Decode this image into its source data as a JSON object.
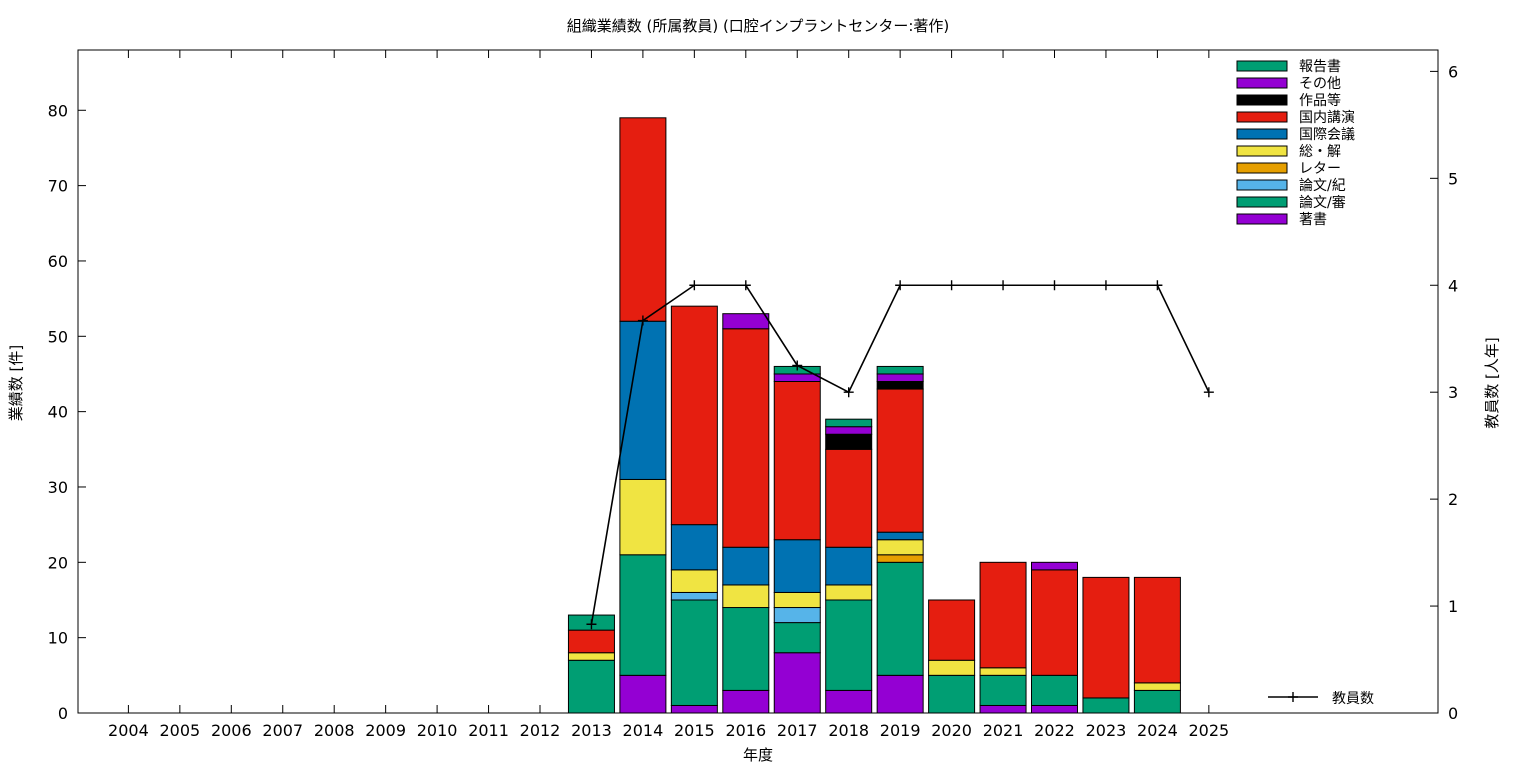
{
  "chart_data": {
    "type": "bar",
    "stacked": true,
    "title": "組織業績数 (所属教員) (口腔インプラントセンター:著作)",
    "xlabel": "年度",
    "ylabel": "業績数 [件]",
    "y2label": "教員数 [人年]",
    "categories": [
      "2004",
      "2005",
      "2006",
      "2007",
      "2008",
      "2009",
      "2010",
      "2011",
      "2012",
      "2013",
      "2014",
      "2015",
      "2016",
      "2017",
      "2018",
      "2019",
      "2020",
      "2021",
      "2022",
      "2023",
      "2024",
      "2025"
    ],
    "ylim": [
      0,
      88
    ],
    "y2lim": [
      0,
      6.2
    ],
    "yticks": [
      0,
      10,
      20,
      30,
      40,
      50,
      60,
      70,
      80
    ],
    "y2ticks": [
      0,
      1,
      2,
      3,
      4,
      5,
      6
    ],
    "grid": false,
    "legend_position": "top-right",
    "series": [
      {
        "name": "著書",
        "color": "#9400d3",
        "values": [
          0,
          0,
          0,
          0,
          0,
          0,
          0,
          0,
          0,
          0,
          5,
          1,
          3,
          8,
          3,
          5,
          0,
          1,
          1,
          0,
          0,
          0
        ]
      },
      {
        "name": "論文/審",
        "color": "#009e73",
        "values": [
          0,
          0,
          0,
          0,
          0,
          0,
          0,
          0,
          0,
          7,
          16,
          14,
          11,
          4,
          12,
          15,
          5,
          4,
          4,
          2,
          3,
          0
        ]
      },
      {
        "name": "論文/紀",
        "color": "#56b4e9",
        "values": [
          0,
          0,
          0,
          0,
          0,
          0,
          0,
          0,
          0,
          0,
          0,
          1,
          0,
          2,
          0,
          0,
          0,
          0,
          0,
          0,
          0,
          0
        ]
      },
      {
        "name": "レター",
        "color": "#e69f00",
        "values": [
          0,
          0,
          0,
          0,
          0,
          0,
          0,
          0,
          0,
          0,
          0,
          0,
          0,
          0,
          0,
          1,
          0,
          0,
          0,
          0,
          0,
          0
        ]
      },
      {
        "name": "総・解",
        "color": "#f0e442",
        "values": [
          0,
          0,
          0,
          0,
          0,
          0,
          0,
          0,
          0,
          1,
          10,
          3,
          3,
          2,
          2,
          2,
          2,
          1,
          0,
          0,
          1,
          0
        ]
      },
      {
        "name": "国際会議",
        "color": "#0072b2",
        "values": [
          0,
          0,
          0,
          0,
          0,
          0,
          0,
          0,
          0,
          0,
          21,
          6,
          5,
          7,
          5,
          1,
          0,
          0,
          0,
          0,
          0,
          0
        ]
      },
      {
        "name": "国内講演",
        "color": "#e51e10",
        "values": [
          0,
          0,
          0,
          0,
          0,
          0,
          0,
          0,
          0,
          3,
          27,
          29,
          29,
          21,
          13,
          19,
          8,
          14,
          14,
          16,
          14,
          0
        ]
      },
      {
        "name": "作品等",
        "color": "#000000",
        "values": [
          0,
          0,
          0,
          0,
          0,
          0,
          0,
          0,
          0,
          0,
          0,
          0,
          0,
          0,
          2,
          1,
          0,
          0,
          0,
          0,
          0,
          0
        ]
      },
      {
        "name": "その他",
        "color": "#9400d3",
        "values": [
          0,
          0,
          0,
          0,
          0,
          0,
          0,
          0,
          0,
          0,
          0,
          0,
          2,
          1,
          1,
          1,
          0,
          0,
          1,
          0,
          0,
          0
        ]
      },
      {
        "name": "報告書",
        "color": "#009e73",
        "values": [
          0,
          0,
          0,
          0,
          0,
          0,
          0,
          0,
          0,
          2,
          0,
          0,
          0,
          1,
          1,
          1,
          0,
          0,
          0,
          0,
          0,
          0
        ]
      }
    ],
    "line_series": {
      "name": "教員数",
      "color": "#000000",
      "axis": "y2",
      "x": [
        "2013",
        "2014",
        "2015",
        "2016",
        "2017",
        "2018",
        "2019",
        "2020",
        "2021",
        "2022",
        "2023",
        "2024",
        "2025"
      ],
      "values": [
        0.83,
        3.67,
        4,
        4,
        3.25,
        3,
        4,
        4,
        4,
        4,
        4,
        4,
        3
      ]
    }
  }
}
